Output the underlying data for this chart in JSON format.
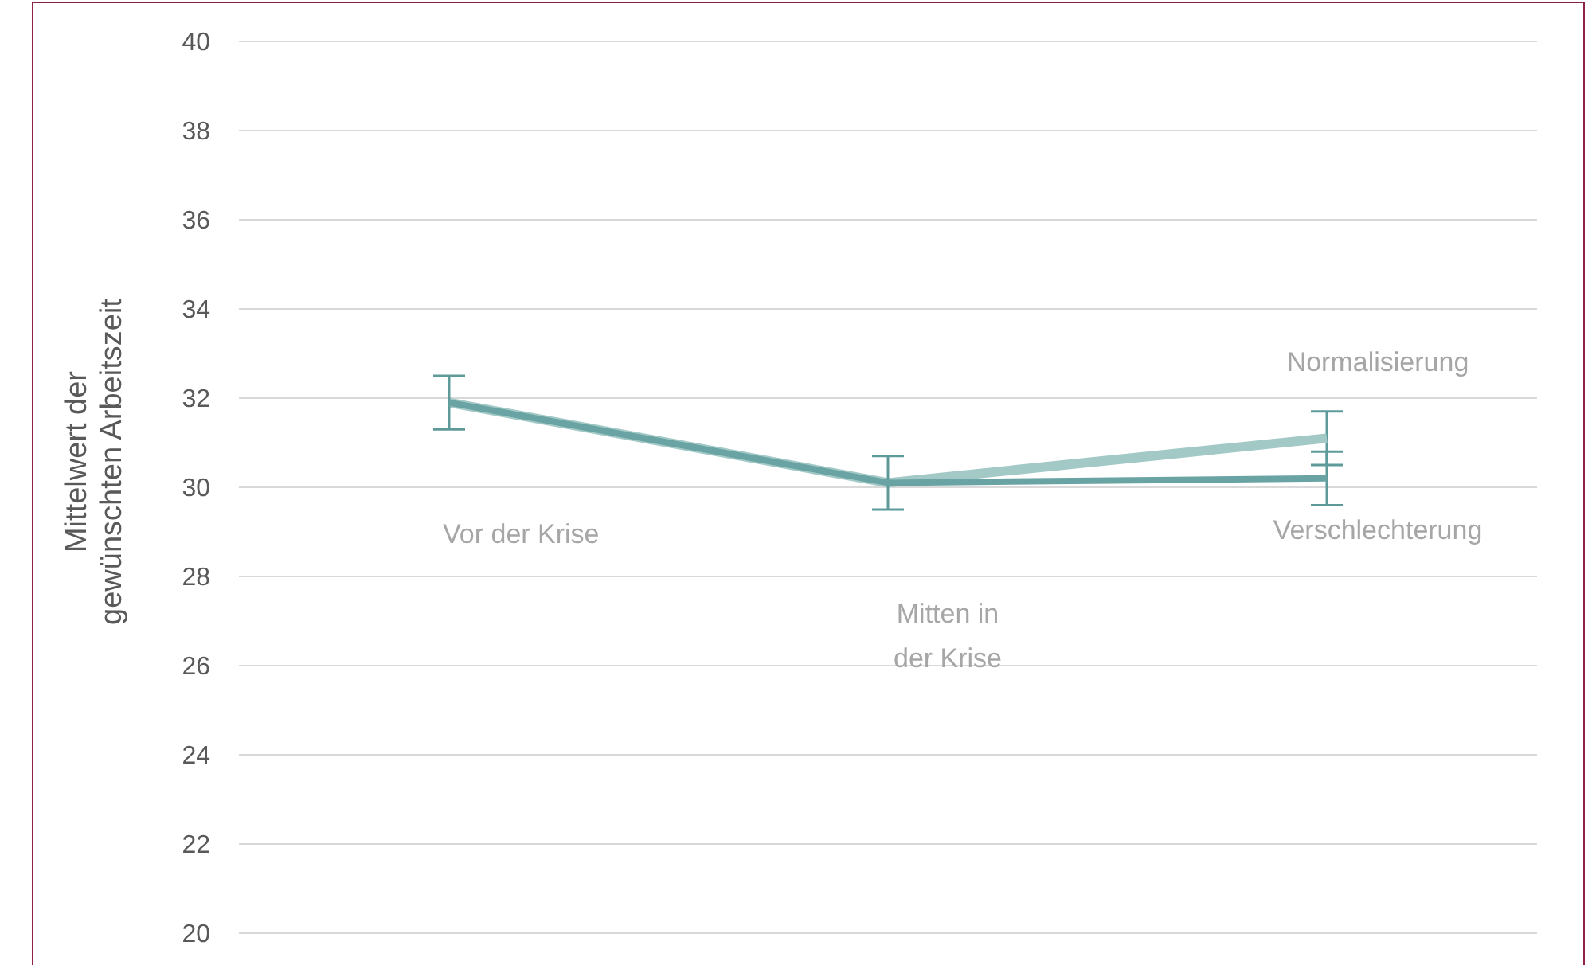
{
  "chart_data": {
    "type": "line",
    "ylabel": "Mittelwert der gewünschten Arbeitszeit",
    "categories": [
      null,
      null,
      null
    ],
    "series": [
      {
        "name": "Normalisierung",
        "color": "#a3c9c7",
        "values": [
          31.9,
          30.1,
          31.1
        ],
        "errors": [
          null,
          null,
          0.6
        ]
      },
      {
        "name": "Verschlechterung",
        "color": "#6aa3a3",
        "values": [
          31.9,
          30.1,
          30.2
        ],
        "errors": [
          0.6,
          0.6,
          0.6
        ]
      }
    ],
    "annotations": [
      "Vor der Krise",
      "Mitten in der Krise"
    ],
    "ylim": [
      20,
      40
    ],
    "yticks": [
      20,
      22,
      24,
      26,
      28,
      30,
      32,
      34,
      36,
      38,
      40
    ],
    "grid": "y",
    "tick_labels": "y",
    "marker": "none",
    "line_style": "solid",
    "legend": false
  }
}
